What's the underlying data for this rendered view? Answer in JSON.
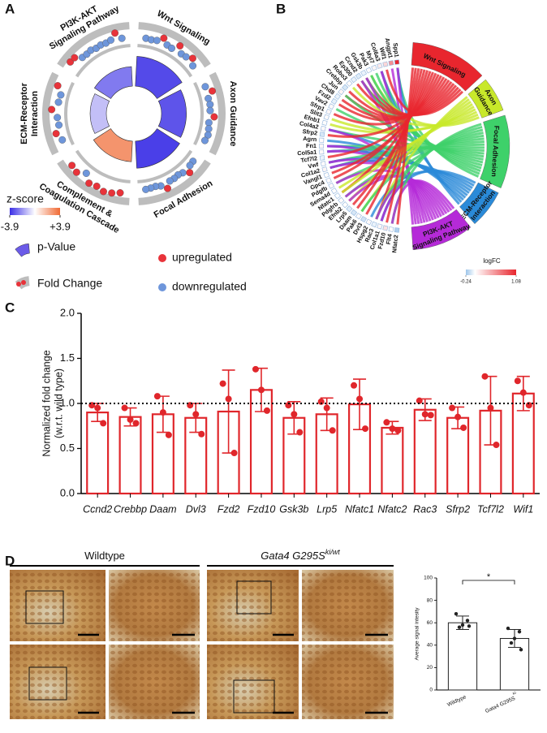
{
  "chart_data": [
    {
      "type": "gocircle",
      "label": "A",
      "terms": [
        {
          "name": [
            "Wnt Signaling"
          ],
          "neg_log_p": 5.5,
          "zscore": -3.4,
          "logfc": [
            -0.2,
            -0.25,
            -0.15,
            0.4,
            -0.2,
            -0.3,
            0.5,
            -0.2,
            -0.1,
            0.35,
            -0.25
          ]
        },
        {
          "name": [
            "Axon Guidance"
          ],
          "neg_log_p": 4.6,
          "zscore": -3.2,
          "logfc": [
            -0.2,
            0.45,
            -0.25,
            -0.15,
            -0.2,
            0.3,
            -0.3,
            -0.2,
            -0.1,
            -0.25
          ]
        },
        {
          "name": [
            "Focal Adhesion"
          ],
          "neg_log_p": 5.0,
          "zscore": -3.6,
          "logfc": [
            -0.25,
            -0.2,
            0.4,
            -0.15,
            -0.3,
            -0.2,
            -0.2,
            0.5,
            -0.1,
            -0.25,
            -0.2,
            -0.15
          ]
        },
        {
          "name": [
            "Complement &",
            "Coagulation Cascade"
          ],
          "neg_log_p": 3.8,
          "zscore": 2.8,
          "logfc": [
            0.3,
            0.55,
            0.7,
            0.45,
            0.6,
            -0.2,
            0.5,
            0.35
          ]
        },
        {
          "name": [
            "ECM-Receptor",
            "Interaction"
          ],
          "neg_log_p": 3.0,
          "zscore": -1.2,
          "logfc": [
            -0.2,
            0.3,
            -0.25,
            -0.15,
            0.55,
            -0.2,
            -0.3,
            0.4
          ]
        },
        {
          "name": [
            "PI3K-AKT",
            "Signaling Pathway"
          ],
          "neg_log_p": 3.6,
          "zscore": -2.5,
          "logfc": [
            0.5,
            0.45,
            -0.2,
            -0.25,
            -0.15,
            -0.3,
            -0.2,
            -0.25,
            -0.1,
            0.6,
            -0.2
          ]
        }
      ],
      "plim": [
        0,
        6
      ],
      "rlim": [
        -1,
        1
      ],
      "zlim": [
        -3.9,
        3.9
      ],
      "zticks": [
        -3.9,
        {
          "value": 3.9,
          "label": "+3.9"
        }
      ],
      "zcolors": [
        "#3b2fe6",
        "#ffffff",
        "#f06a34"
      ],
      "up_color": "#e8333a",
      "down_color": "#6e96db",
      "legend": {
        "zscore": "z-score",
        "pvalue": "p-Value",
        "foldchange": "Fold Change",
        "up": "upregulated",
        "down": "downregulated"
      }
    },
    {
      "type": "chord",
      "label": "B",
      "terms": [
        {
          "name": [
            "Wnt Signaling"
          ],
          "color": "#e8262e"
        },
        {
          "name": [
            "Axon",
            "Guidance"
          ],
          "color": "#c8e82a"
        },
        {
          "name": [
            "Focal Adhesion"
          ],
          "color": "#3ed16a"
        },
        {
          "name": [
            "ECM-Receptor",
            "Interaction"
          ],
          "color": "#2a8ad8"
        },
        {
          "name": [
            "PI3K-AKT",
            "Signaling Pathway"
          ],
          "color": "#b52ad8"
        }
      ],
      "genes": [
        {
          "name": "Spp1",
          "logfc": 1.08,
          "terms": [
            0,
            0,
            1,
            1,
            1
          ]
        },
        {
          "name": "Angpt1",
          "logfc": 0.55,
          "terms": [
            0,
            0,
            0,
            0,
            1
          ]
        },
        {
          "name": "Wif1",
          "logfc": 0.2,
          "terms": [
            1,
            0,
            0,
            0,
            0
          ]
        },
        {
          "name": "Col6a3",
          "logfc": 0.1,
          "terms": [
            0,
            0,
            1,
            1,
            1
          ]
        },
        {
          "name": "Myl7",
          "logfc": 0.05,
          "terms": [
            0,
            0,
            1,
            0,
            0
          ]
        },
        {
          "name": "Pak3",
          "logfc": 0.02,
          "terms": [
            0,
            1,
            1,
            0,
            0
          ]
        },
        {
          "name": "Gsk3b",
          "logfc": -0.05,
          "terms": [
            1,
            0,
            1,
            0,
            1
          ]
        },
        {
          "name": "Ccnd2",
          "logfc": -0.08,
          "terms": [
            1,
            0,
            1,
            0,
            1
          ]
        },
        {
          "name": "Ep300",
          "logfc": -0.05,
          "terms": [
            1,
            0,
            0,
            0,
            0
          ]
        },
        {
          "name": "Robo3",
          "logfc": 0.02,
          "terms": [
            0,
            1,
            0,
            0,
            0
          ]
        },
        {
          "name": "Crebbp",
          "logfc": -0.1,
          "terms": [
            1,
            0,
            0,
            0,
            0
          ]
        },
        {
          "name": "Jun",
          "logfc": 0.05,
          "terms": [
            1,
            0,
            1,
            0,
            0
          ]
        },
        {
          "name": "Chd8",
          "logfc": -0.05,
          "terms": [
            1,
            0,
            0,
            0,
            0
          ]
        },
        {
          "name": "Fzd2",
          "logfc": -0.06,
          "terms": [
            1,
            0,
            0,
            0,
            0
          ]
        },
        {
          "name": "Vav2",
          "logfc": 0.03,
          "terms": [
            0,
            0,
            1,
            0,
            0
          ]
        },
        {
          "name": "Sfrp1",
          "logfc": 0.04,
          "terms": [
            1,
            0,
            0,
            0,
            0
          ]
        },
        {
          "name": "Slit3",
          "logfc": 0.02,
          "terms": [
            0,
            1,
            0,
            0,
            0
          ]
        },
        {
          "name": "Efnb1",
          "logfc": 0.01,
          "terms": [
            0,
            1,
            0,
            0,
            0
          ]
        },
        {
          "name": "Col4a2",
          "logfc": 0.03,
          "terms": [
            0,
            0,
            1,
            1,
            1
          ]
        },
        {
          "name": "Sfrp2",
          "logfc": -0.1,
          "terms": [
            1,
            0,
            0,
            0,
            0
          ]
        },
        {
          "name": "Agrn",
          "logfc": 0.02,
          "terms": [
            0,
            0,
            0,
            1,
            0
          ]
        },
        {
          "name": "Fn1",
          "logfc": 0.04,
          "terms": [
            0,
            0,
            1,
            1,
            1
          ]
        },
        {
          "name": "Col5a1",
          "logfc": 0.03,
          "terms": [
            0,
            0,
            1,
            1,
            1
          ]
        },
        {
          "name": "Tcf7l2",
          "logfc": -0.05,
          "terms": [
            1,
            0,
            0,
            0,
            0
          ]
        },
        {
          "name": "Vwf",
          "logfc": 0.02,
          "terms": [
            0,
            0,
            1,
            1,
            1
          ]
        },
        {
          "name": "Col1a2",
          "logfc": 0.05,
          "terms": [
            0,
            0,
            1,
            1,
            1
          ]
        },
        {
          "name": "Vangl1",
          "logfc": 0.01,
          "terms": [
            1,
            0,
            0,
            0,
            0
          ]
        },
        {
          "name": "Gpc4",
          "logfc": 0.02,
          "terms": [
            1,
            0,
            0,
            0,
            0
          ]
        },
        {
          "name": "Pdgfb",
          "logfc": 0.03,
          "terms": [
            0,
            0,
            1,
            0,
            1
          ]
        },
        {
          "name": "Sema4d",
          "logfc": 0.01,
          "terms": [
            0,
            1,
            0,
            0,
            0
          ]
        },
        {
          "name": "Nfatc1",
          "logfc": -0.01,
          "terms": [
            1,
            1,
            0,
            0,
            0
          ]
        },
        {
          "name": "Pdgfrb",
          "logfc": 0.02,
          "terms": [
            0,
            0,
            1,
            0,
            1
          ]
        },
        {
          "name": "Efnb2",
          "logfc": 0.01,
          "terms": [
            0,
            1,
            0,
            0,
            1
          ]
        },
        {
          "name": "Lrp5",
          "logfc": -0.08,
          "terms": [
            1,
            0,
            0,
            0,
            0
          ]
        },
        {
          "name": "Daam",
          "logfc": -0.1,
          "terms": [
            1,
            0,
            0,
            0,
            0
          ]
        },
        {
          "name": "Pak6",
          "logfc": 0.02,
          "terms": [
            0,
            1,
            1,
            0,
            0
          ]
        },
        {
          "name": "Dvl3",
          "logfc": -0.12,
          "terms": [
            1,
            0,
            0,
            0,
            0
          ]
        },
        {
          "name": "Hspg2",
          "logfc": 0.03,
          "terms": [
            0,
            0,
            0,
            1,
            0
          ]
        },
        {
          "name": "Rac3",
          "logfc": -0.05,
          "terms": [
            1,
            1,
            1,
            0,
            1
          ]
        },
        {
          "name": "Col1a1",
          "logfc": 0.04,
          "terms": [
            0,
            0,
            1,
            1,
            1
          ]
        },
        {
          "name": "Fzd10",
          "logfc": 0.15,
          "terms": [
            1,
            0,
            0,
            0,
            0
          ]
        },
        {
          "name": "Flt4",
          "logfc": 0.02,
          "terms": [
            0,
            0,
            1,
            0,
            1
          ]
        },
        {
          "name": "Nfatc2",
          "logfc": -0.2,
          "terms": [
            1,
            0,
            0,
            0,
            0
          ]
        }
      ],
      "legend_title": "logFC",
      "clim": [
        -0.24,
        1.08
      ],
      "cticks": [
        -0.24,
        1.08
      ],
      "ccolors": [
        "#9ec5ea",
        "#ffffff",
        "#e8262e"
      ]
    },
    {
      "type": "bar",
      "label": "C",
      "ylabel": [
        "Normalized fold change",
        "(w.r.t. wild type)"
      ],
      "categories": [
        "Ccnd2",
        "Crebbp",
        "Daam",
        "Dvl3",
        "Fzd2",
        "Fzd10",
        "Gsk3b",
        "Lrp5",
        "Nfatc1",
        "Nfatc2",
        "Rac3",
        "Sfrp2",
        "Tcf7l2",
        "Wif1"
      ],
      "values": [
        0.9,
        0.85,
        0.88,
        0.84,
        0.91,
        1.15,
        0.84,
        0.88,
        0.99,
        0.73,
        0.93,
        0.84,
        0.92,
        1.11
      ],
      "errors": [
        0.1,
        0.1,
        0.2,
        0.16,
        0.46,
        0.24,
        0.18,
        0.18,
        0.28,
        0.07,
        0.12,
        0.12,
        0.38,
        0.19
      ],
      "points": [
        [
          0.98,
          0.95,
          0.78
        ],
        [
          0.95,
          0.82,
          0.78
        ],
        [
          1.08,
          0.9,
          0.65
        ],
        [
          0.98,
          0.88,
          0.66
        ],
        [
          1.22,
          1.05,
          0.45
        ],
        [
          1.38,
          1.15,
          0.92
        ],
        [
          0.98,
          0.88,
          0.68
        ],
        [
          1.02,
          0.95,
          0.7
        ],
        [
          1.2,
          1.05,
          0.72
        ],
        [
          0.79,
          0.72,
          0.7
        ],
        [
          1.03,
          0.88,
          0.87
        ],
        [
          0.95,
          0.85,
          0.73
        ],
        [
          1.3,
          0.95,
          0.54
        ],
        [
          1.25,
          1.12,
          0.98
        ]
      ],
      "color": "#e0262b",
      "refline": 1,
      "ylim": [
        0,
        2
      ],
      "yticks": [
        {
          "value": 0,
          "label": "0.0"
        },
        {
          "value": 0.5,
          "label": "0.5"
        },
        {
          "value": 1,
          "label": "1.0"
        },
        {
          "value": 1.5,
          "label": "1.5"
        },
        {
          "value": 2,
          "label": "2.0"
        }
      ]
    },
    {
      "type": "bar",
      "label": "D",
      "headers": [
        {
          "text": "Wildtype"
        },
        {
          "text": "Gata4 G295S",
          "sup": "ki/wt"
        }
      ],
      "ylabel": "Average signal intesity",
      "categories": [
        {
          "text": "Wildtype"
        },
        {
          "text": "Gata4 G295S",
          "sup": "Ki"
        }
      ],
      "values": [
        60,
        46
      ],
      "errors": [
        6,
        8
      ],
      "points": [
        [
          68,
          62,
          58,
          56,
          57
        ],
        [
          55,
          52,
          46,
          42,
          36
        ]
      ],
      "color": "#222222",
      "significance": "*",
      "ylim": [
        0,
        100
      ],
      "yticks": [
        0,
        20,
        40,
        60,
        80,
        100
      ]
    }
  ]
}
